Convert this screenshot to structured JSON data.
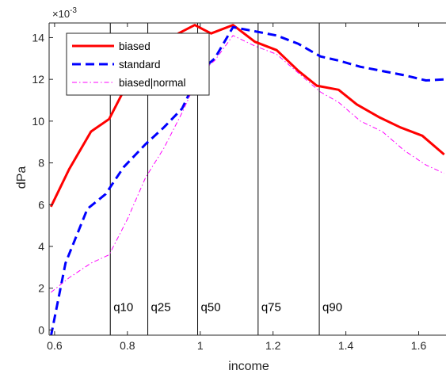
{
  "chart_data": {
    "type": "line",
    "title": "",
    "xlabel": "income",
    "ylabel": "dPa",
    "y_multiplier_base": "×10",
    "y_multiplier_exp": "-3",
    "xlim": [
      0.585,
      1.675
    ],
    "ylim": [
      -0.25,
      14.7
    ],
    "xticks": [
      0.6,
      0.8,
      1,
      1.2,
      1.4,
      1.6
    ],
    "xtick_labels": [
      "0.6",
      "0.8",
      "1",
      "1.2",
      "1.4",
      "1.6"
    ],
    "yticks": [
      0,
      2,
      4,
      6,
      8,
      10,
      12,
      14
    ],
    "ytick_labels": [
      "0",
      "2",
      "4",
      "6",
      "8",
      "10",
      "12",
      "14"
    ],
    "grid": false,
    "legend_position": "top-left",
    "series": [
      {
        "name": "biased",
        "color": "#ff0000",
        "style": "solid",
        "x": [
          0.59,
          0.64,
          0.7,
          0.75,
          0.8,
          0.85,
          0.9,
          0.94,
          0.985,
          1.03,
          1.09,
          1.15,
          1.21,
          1.27,
          1.32,
          1.38,
          1.43,
          1.49,
          1.55,
          1.61,
          1.67
        ],
        "y": [
          5.9,
          7.7,
          9.5,
          10.1,
          11.8,
          12.6,
          13.4,
          14.2,
          14.6,
          14.2,
          14.6,
          13.8,
          13.4,
          12.4,
          11.7,
          11.5,
          10.8,
          10.2,
          9.7,
          9.3,
          8.4
        ]
      },
      {
        "name": "standard",
        "color": "#0000ff",
        "style": "dashed",
        "x": [
          0.59,
          0.63,
          0.69,
          0.74,
          0.79,
          0.85,
          0.9,
          0.95,
          1.0,
          1.04,
          1.09,
          1.15,
          1.21,
          1.27,
          1.33,
          1.38,
          1.44,
          1.5,
          1.56,
          1.62,
          1.67
        ],
        "y": [
          -0.3,
          3.2,
          5.8,
          6.5,
          7.8,
          8.9,
          9.7,
          10.6,
          12.4,
          13.0,
          14.5,
          14.3,
          14.1,
          13.7,
          13.1,
          12.9,
          12.6,
          12.4,
          12.2,
          11.95,
          12.0
        ]
      },
      {
        "name": "biased|normal",
        "color": "#ff00ff",
        "style": "dashdot",
        "x": [
          0.59,
          0.64,
          0.7,
          0.75,
          0.8,
          0.85,
          0.9,
          0.95,
          1.0,
          1.04,
          1.09,
          1.15,
          1.21,
          1.27,
          1.33,
          1.38,
          1.44,
          1.5,
          1.56,
          1.62,
          1.67
        ],
        "y": [
          1.8,
          2.5,
          3.2,
          3.6,
          5.3,
          7.3,
          8.7,
          10.4,
          12.3,
          12.9,
          14.1,
          13.6,
          13.2,
          12.3,
          11.4,
          10.9,
          10.0,
          9.5,
          8.6,
          7.9,
          7.5
        ]
      }
    ],
    "vlines": [
      {
        "label": "q10",
        "x": 0.753
      },
      {
        "label": "q25",
        "x": 0.856
      },
      {
        "label": "q50",
        "x": 0.993
      },
      {
        "label": "q75",
        "x": 1.159
      },
      {
        "label": "q90",
        "x": 1.327
      }
    ],
    "vline_label_y": 1.1
  }
}
